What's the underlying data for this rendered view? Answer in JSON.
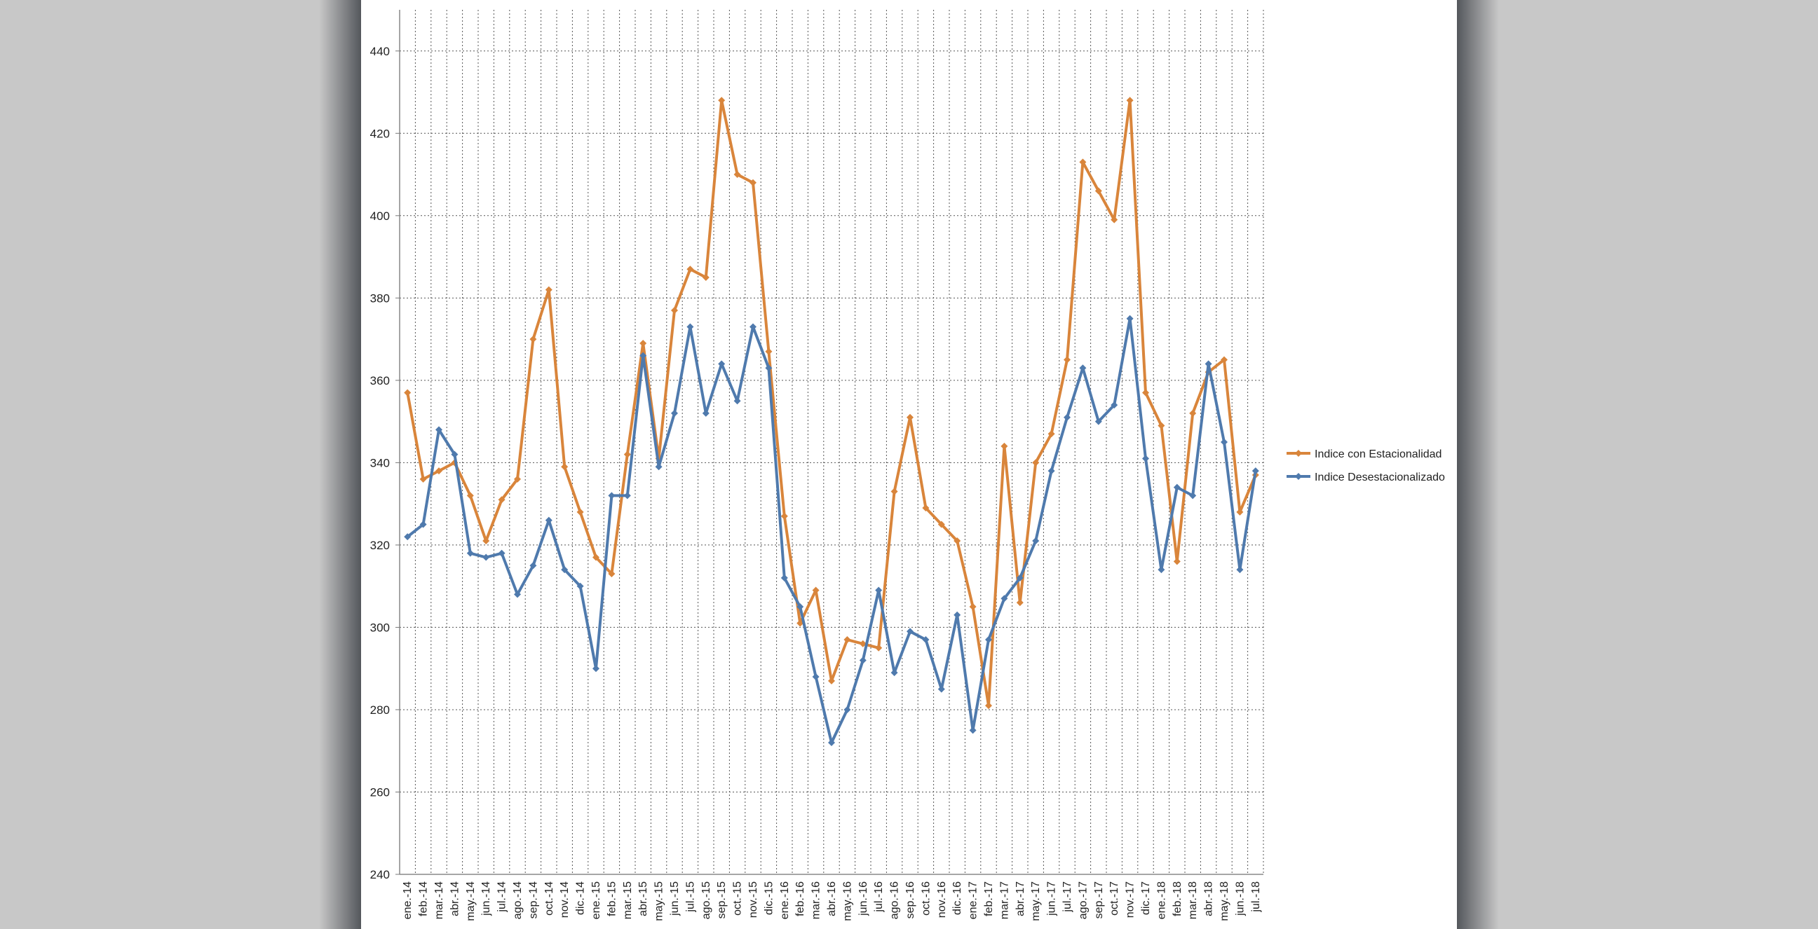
{
  "chart_data": {
    "type": "line",
    "title": "",
    "xlabel": "",
    "ylabel": "",
    "ylim": [
      240,
      450
    ],
    "yticks": [
      240,
      260,
      280,
      300,
      320,
      340,
      360,
      380,
      400,
      420,
      440
    ],
    "grid": true,
    "legend_position": "right",
    "categories": [
      "ene.-14",
      "feb.-14",
      "mar.-14",
      "abr.-14",
      "may.-14",
      "jun.-14",
      "jul.-14",
      "ago.-14",
      "sep.-14",
      "oct.-14",
      "nov.-14",
      "dic.-14",
      "ene.-15",
      "feb.-15",
      "mar.-15",
      "abr.-15",
      "may.-15",
      "jun.-15",
      "jul.-15",
      "ago.-15",
      "sep.-15",
      "oct.-15",
      "nov.-15",
      "dic.-15",
      "ene.-16",
      "feb.-16",
      "mar.-16",
      "abr.-16",
      "may.-16",
      "jun.-16",
      "jul.-16",
      "ago.-16",
      "sep.-16",
      "oct.-16",
      "nov.-16",
      "dic.-16",
      "ene.-17",
      "feb.-17",
      "mar.-17",
      "abr.-17",
      "may.-17",
      "jun.-17",
      "jul.-17",
      "ago.-17",
      "sep.-17",
      "oct.-17",
      "nov.-17",
      "dic.-17",
      "ene.-18",
      "feb.-18",
      "mar.-18",
      "abr.-18",
      "may.-18",
      "jun.-18",
      "jul.-18"
    ],
    "series": [
      {
        "name": "Indice con Estacionalidad",
        "color": "#d9853b",
        "values": [
          357,
          336,
          338,
          340,
          332,
          321,
          331,
          336,
          370,
          382,
          339,
          328,
          317,
          313,
          342,
          369,
          341,
          377,
          387,
          385,
          428,
          410,
          408,
          367,
          327,
          301,
          309,
          287,
          297,
          296,
          295,
          333,
          351,
          329,
          325,
          321,
          305,
          281,
          344,
          306,
          340,
          347,
          365,
          413,
          406,
          399,
          428,
          357,
          349,
          316,
          352,
          362,
          365,
          328,
          337
        ]
      },
      {
        "name": "Indice Desestacionalizado",
        "color": "#4f7aad",
        "values": [
          322,
          325,
          348,
          342,
          318,
          317,
          318,
          308,
          315,
          326,
          314,
          310,
          290,
          332,
          332,
          366,
          339,
          352,
          373,
          352,
          364,
          355,
          373,
          363,
          312,
          305,
          288,
          272,
          280,
          292,
          309,
          289,
          299,
          297,
          285,
          303,
          275,
          297,
          307,
          312,
          321,
          338,
          351,
          363,
          350,
          354,
          375,
          341,
          314,
          334,
          332,
          364,
          345,
          314,
          338
        ]
      }
    ]
  }
}
